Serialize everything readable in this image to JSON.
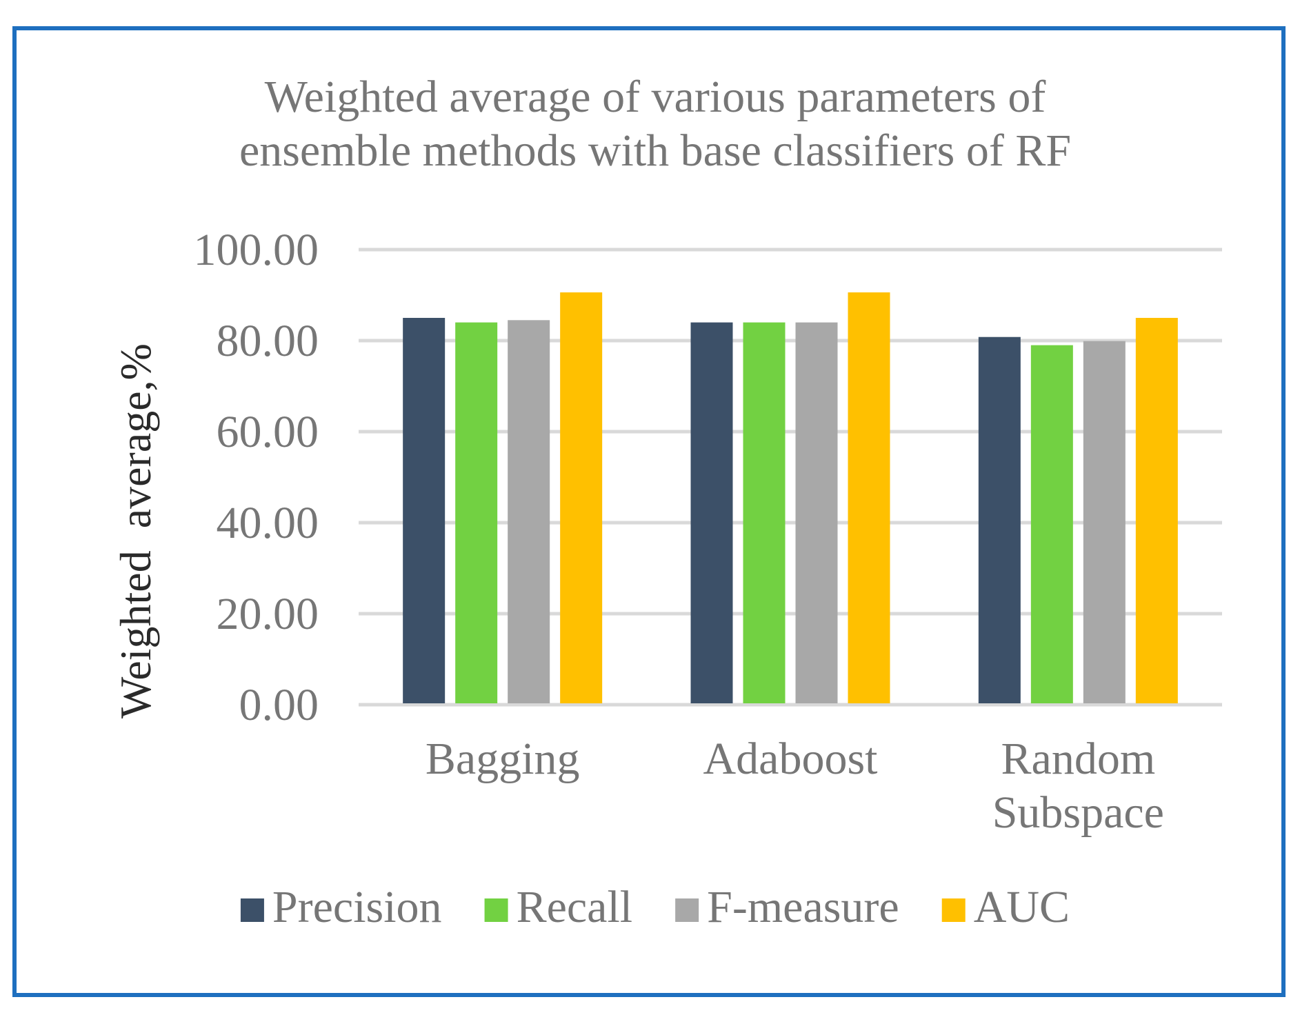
{
  "chart_data": {
    "type": "bar",
    "title": [
      "Weighted average of various parameters of",
      "ensemble methods with base classifiers of RF"
    ],
    "ylabel": "Weighted  average,%",
    "xlabel": "",
    "ylim": [
      0,
      100
    ],
    "yticks": [
      "0.00",
      "20.00",
      "40.00",
      "60.00",
      "80.00",
      "100.00"
    ],
    "categories": [
      [
        "Bagging"
      ],
      [
        "Adaboost"
      ],
      [
        "Random",
        "Subspace"
      ]
    ],
    "series": [
      {
        "name": "Precision",
        "color": "#3c5068",
        "values": [
          85.0,
          84.0,
          80.8
        ]
      },
      {
        "name": "Recall",
        "color": "#72d142",
        "values": [
          84.0,
          84.0,
          79.0
        ]
      },
      {
        "name": "F-measure",
        "color": "#a8a8a8",
        "values": [
          84.5,
          84.0,
          79.9
        ]
      },
      {
        "name": "AUC",
        "color": "#ffc000",
        "values": [
          90.6,
          90.6,
          85.0
        ]
      }
    ],
    "grid": true,
    "legend_position": "bottom"
  }
}
